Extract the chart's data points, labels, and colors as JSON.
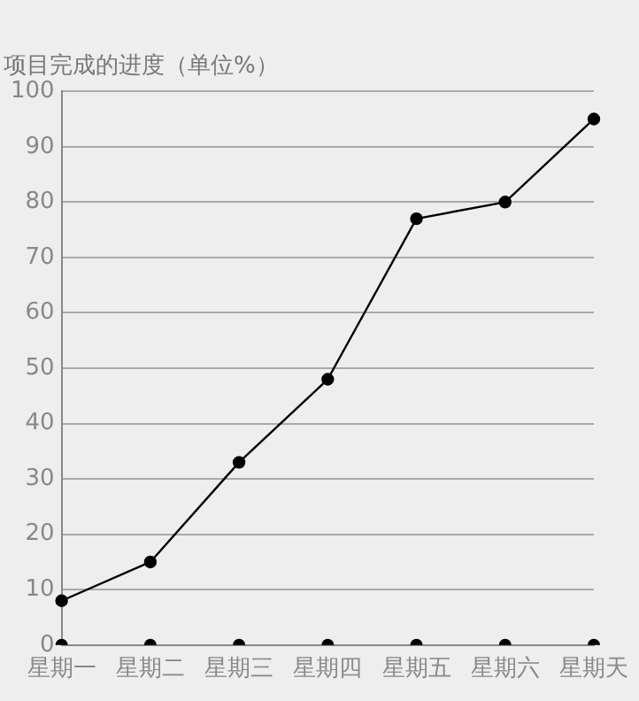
{
  "chart_data": {
    "type": "line",
    "title": "项目完成的进度（单位%）",
    "categories": [
      "星期一",
      "星期二",
      "星期三",
      "星期四",
      "星期五",
      "星期六",
      "星期天"
    ],
    "series": [
      {
        "color": "#000000",
        "values": [
          8,
          15,
          33,
          48,
          77,
          80,
          95
        ]
      },
      {
        "type": "scatter",
        "color": "#000000",
        "values": [
          0,
          0,
          0,
          0,
          0,
          0,
          0
        ]
      }
    ],
    "ylim": [
      0,
      100
    ],
    "yticks": [
      0,
      10,
      20,
      30,
      40,
      50,
      60,
      70,
      80,
      90,
      100
    ],
    "grid": "y",
    "marker": "circle",
    "line_style": "solid",
    "legend": false
  }
}
